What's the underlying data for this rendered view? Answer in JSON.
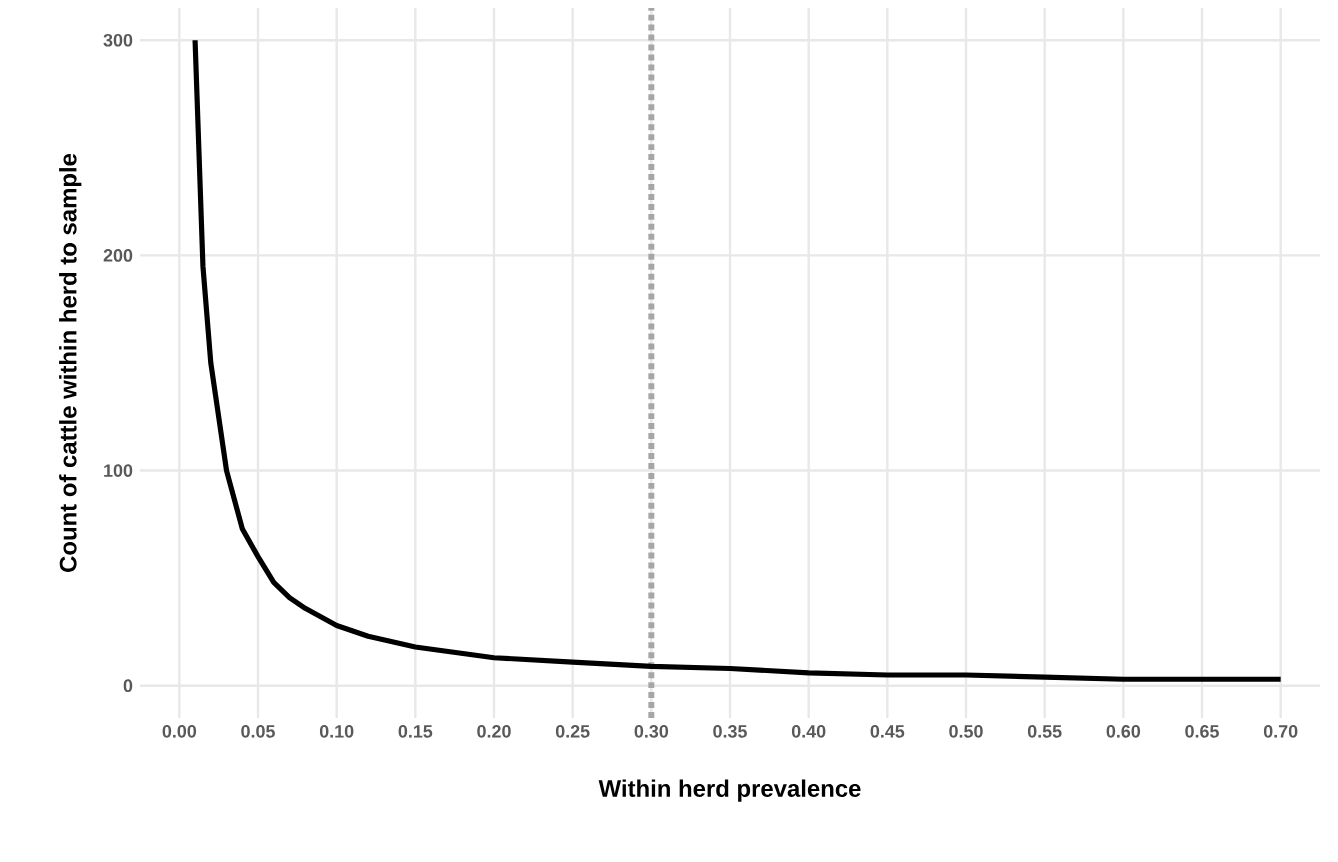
{
  "chart_data": {
    "type": "line",
    "xlabel": "Within herd prevalence",
    "ylabel": "Count of cattle within herd to sample",
    "x": [
      0.01,
      0.015,
      0.02,
      0.03,
      0.04,
      0.05,
      0.06,
      0.07,
      0.08,
      0.1,
      0.12,
      0.15,
      0.2,
      0.25,
      0.3,
      0.35,
      0.4,
      0.45,
      0.5,
      0.55,
      0.6,
      0.65,
      0.7
    ],
    "series": [
      {
        "color": "#000000",
        "values": [
          300,
          195,
          150,
          100,
          73,
          60,
          48,
          41,
          36,
          28,
          23,
          18,
          13,
          11,
          9,
          8,
          6,
          5,
          5,
          4,
          3,
          3,
          3
        ]
      }
    ],
    "xlim": [
      -0.025,
      0.725
    ],
    "ylim": [
      -15,
      315
    ],
    "xticks": [
      {
        "value": 0,
        "label": "0.00"
      },
      {
        "value": 0.05,
        "label": "0.05"
      },
      {
        "value": 0.1,
        "label": "0.10"
      },
      {
        "value": 0.15,
        "label": "0.15"
      },
      {
        "value": 0.2,
        "label": "0.20"
      },
      {
        "value": 0.25,
        "label": "0.25"
      },
      {
        "value": 0.3,
        "label": "0.30"
      },
      {
        "value": 0.35,
        "label": "0.35"
      },
      {
        "value": 0.4,
        "label": "0.40"
      },
      {
        "value": 0.45,
        "label": "0.45"
      },
      {
        "value": 0.5,
        "label": "0.50"
      },
      {
        "value": 0.55,
        "label": "0.55"
      },
      {
        "value": 0.6,
        "label": "0.60"
      },
      {
        "value": 0.65,
        "label": "0.65"
      },
      {
        "value": 0.7,
        "label": "0.70"
      }
    ],
    "yticks": [
      0,
      100,
      200,
      300
    ],
    "ref_lines": [
      {
        "axis": "x",
        "value": 0.3,
        "color": "#a6a6a6",
        "line_style": "dotted"
      }
    ],
    "grid": true,
    "marker": "none",
    "line_style": "solid"
  }
}
